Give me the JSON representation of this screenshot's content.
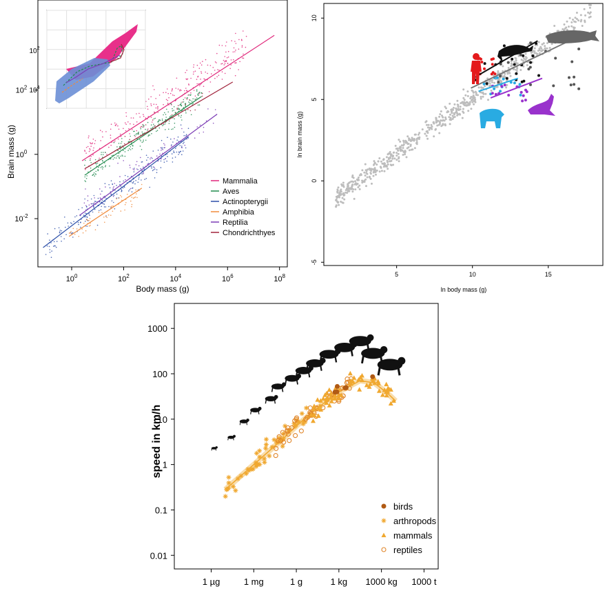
{
  "chart_data": [
    {
      "id": "brain_body_classes",
      "type": "scatter",
      "xscale": "log10",
      "yscale": "log10",
      "xlabel": "Body mass (g)",
      "ylabel": "Brain mass (g)",
      "x_ticks": [
        {
          "exp": 0
        },
        {
          "exp": 2
        },
        {
          "exp": 4
        },
        {
          "exp": 6
        },
        {
          "exp": 8
        }
      ],
      "y_ticks": [
        {
          "exp": -2
        },
        {
          "exp": 0
        },
        {
          "exp": 2
        }
      ],
      "xlim_log": [
        -1.3,
        8.3
      ],
      "ylim_log": [
        -3.5,
        4.8
      ],
      "legend": [
        {
          "label": "Mammalia",
          "color": "#e0267a"
        },
        {
          "label": "Aves",
          "color": "#1f8a4c"
        },
        {
          "label": "Actinopterygii",
          "color": "#2b4ea8"
        },
        {
          "label": "Amphibia",
          "color": "#f08a3a"
        },
        {
          "label": "Reptilia",
          "color": "#7b3bb5"
        },
        {
          "label": "Chondrichthyes",
          "color": "#a0223a"
        }
      ],
      "series": [
        {
          "name": "Mammalia",
          "color": "#e0267a",
          "fit": [
            [
              0.4,
              -0.2
            ],
            [
              7.8,
              3.7
            ]
          ],
          "cloud": {
            "x": [
              0.5,
              6.8
            ],
            "slope": 0.52,
            "intercept": -0.2,
            "spread": 0.5,
            "n": 260
          }
        },
        {
          "name": "Aves",
          "color": "#1f8a4c",
          "fit": [
            [
              0.5,
              -0.65
            ],
            [
              5.0,
              1.8
            ]
          ],
          "cloud": {
            "x": [
              0.5,
              5.0
            ],
            "slope": 0.55,
            "intercept": -0.9,
            "spread": 0.35,
            "n": 260
          }
        },
        {
          "name": "Actinopterygii",
          "color": "#2b4ea8",
          "fit": [
            [
              -1.1,
              -2.9
            ],
            [
              4.5,
              0.55
            ]
          ],
          "cloud": {
            "x": [
              -1.0,
              4.5
            ],
            "slope": 0.6,
            "intercept": -2.2,
            "spread": 0.45,
            "n": 260
          }
        },
        {
          "name": "Amphibia",
          "color": "#f08a3a",
          "fit": [
            [
              -0.1,
              -2.55
            ],
            [
              2.7,
              -1.05
            ]
          ],
          "cloud": {
            "x": [
              -0.1,
              2.7
            ],
            "slope": 0.52,
            "intercept": -2.5,
            "spread": 0.3,
            "n": 60
          }
        },
        {
          "name": "Reptilia",
          "color": "#7b3bb5",
          "fit": [
            [
              0.3,
              -1.9
            ],
            [
              5.6,
              1.25
            ]
          ],
          "cloud": {
            "x": [
              0.4,
              5.6
            ],
            "slope": 0.55,
            "intercept": -1.9,
            "spread": 0.4,
            "n": 80
          }
        },
        {
          "name": "Chondrichthyes",
          "color": "#a0223a",
          "fit": [
            [
              0.5,
              -0.45
            ],
            [
              6.2,
              2.25
            ]
          ],
          "cloud": {
            "x": [
              2.0,
              5.5
            ],
            "slope": 0.5,
            "intercept": -0.6,
            "spread": 0.35,
            "n": 25
          }
        }
      ],
      "inset": {
        "y_ticks": [
          {
            "exp": 2
          },
          {
            "exp": 4
          }
        ]
      }
    },
    {
      "id": "ln_brain_body",
      "type": "scatter",
      "xlabel": "ln body mass (g)",
      "ylabel": "ln brain mass (g)",
      "xlim": [
        0.2,
        18.6
      ],
      "ylim": [
        -5.2,
        10.9
      ],
      "x_ticks": [
        5,
        10,
        15
      ],
      "y_ticks": [
        -5,
        0,
        5,
        10
      ],
      "gray_cloud": {
        "x": [
          1,
          17.8
        ],
        "slope": 0.68,
        "intercept": -1.7,
        "spread": 0.6,
        "n": 700,
        "color": "#bdbdbd"
      },
      "groups": [
        {
          "name": "primates",
          "color": "#e41a1c",
          "x": [
            10.2,
            11.6
          ],
          "y": [
            6.4,
            7.6
          ],
          "n": 14
        },
        {
          "name": "cetaceans",
          "color": "#111111",
          "x": [
            10.2,
            14.5
          ],
          "y": [
            5.9,
            8.5
          ],
          "n": 20
        },
        {
          "name": "large mammals",
          "color": "#555555",
          "x": [
            10.0,
            17.5
          ],
          "y": [
            5.6,
            8.9
          ],
          "n": 24
        },
        {
          "name": "carnivores",
          "color": "#29abe2",
          "x": [
            10.3,
            13.2
          ],
          "y": [
            5.2,
            6.4
          ],
          "n": 14
        },
        {
          "name": "pinnipeds",
          "color": "#9932cc",
          "x": [
            11.2,
            13.6
          ],
          "y": [
            4.9,
            5.9
          ],
          "n": 14
        }
      ],
      "fits": [
        {
          "color": "#111111",
          "from": [
            10.4,
            6.5
          ],
          "to": [
            14.3,
            8.6
          ]
        },
        {
          "color": "#777777",
          "from": [
            9.9,
            5.7
          ],
          "to": [
            17.5,
            9.1
          ]
        },
        {
          "color": "#29abe2",
          "from": [
            10.4,
            5.5
          ],
          "to": [
            13.0,
            6.3
          ]
        },
        {
          "color": "#9932cc",
          "from": [
            11.2,
            5.1
          ],
          "to": [
            14.6,
            6.3
          ]
        }
      ]
    },
    {
      "id": "speed_vs_mass",
      "type": "scatter",
      "xscale": "log10 grams",
      "yscale": "log10",
      "xlabel": "",
      "ylabel": "speed in km/h",
      "x_ticks": [
        {
          "label": "1 µg",
          "log": -6
        },
        {
          "label": "1 mg",
          "log": -3
        },
        {
          "label": "1 g",
          "log": 0
        },
        {
          "label": "1 kg",
          "log": 3
        },
        {
          "label": "1000 kg",
          "log": 6
        },
        {
          "label": "1000 t",
          "log": 9
        }
      ],
      "y_ticks": [
        {
          "label": "1000",
          "log": 3
        },
        {
          "label": "100",
          "log": 2
        },
        {
          "label": "10",
          "log": 1
        },
        {
          "label": "1",
          "log": 0
        },
        {
          "label": "0.1",
          "log": -1
        },
        {
          "label": "0.01",
          "log": -2
        }
      ],
      "xlim_log": [
        -8.6,
        10.0
      ],
      "ylim_log": [
        -2.3,
        3.55
      ],
      "legend": [
        {
          "label": "birds",
          "marker": "dot",
          "color": "#b05a14"
        },
        {
          "label": "arthropods",
          "marker": "star",
          "color": "#f0a830"
        },
        {
          "label": "mammals",
          "marker": "triangle",
          "color": "#f0a830"
        },
        {
          "label": "reptiles",
          "marker": "circle",
          "color": "#e0862a"
        }
      ],
      "fit_curve": [
        [
          -5.0,
          -0.55
        ],
        [
          -3.0,
          0.0
        ],
        [
          -1.0,
          0.55
        ],
        [
          0.0,
          0.85
        ],
        [
          1.5,
          1.25
        ],
        [
          3.0,
          1.6
        ],
        [
          4.5,
          1.85
        ],
        [
          5.5,
          1.8
        ],
        [
          6.5,
          1.55
        ],
        [
          7.0,
          1.4
        ]
      ],
      "groups": [
        {
          "name": "arthropods",
          "marker": "star",
          "color": "#f0a830",
          "x": [
            -5.0,
            1.0
          ],
          "n": 55
        },
        {
          "name": "reptiles",
          "marker": "circle",
          "color": "#e0862a",
          "x": [
            -1.5,
            4.0
          ],
          "n": 55
        },
        {
          "name": "mammals",
          "marker": "triangle",
          "color": "#f0a830",
          "x": [
            1.0,
            7.0
          ],
          "n": 70
        },
        {
          "name": "birds",
          "marker": "dot",
          "color": "#b05a14",
          "x": [
            2.5,
            5.5
          ],
          "n": 6
        }
      ],
      "silhouettes": [
        {
          "name": "mite",
          "log_mass": -5.8,
          "log_speed": 0.36
        },
        {
          "name": "ant",
          "log_mass": -4.6,
          "log_speed": 0.6
        },
        {
          "name": "beetle",
          "log_mass": -3.7,
          "log_speed": 0.95
        },
        {
          "name": "cockroach",
          "log_mass": -2.9,
          "log_speed": 1.2
        },
        {
          "name": "spider",
          "log_mass": -1.8,
          "log_speed": 1.45
        },
        {
          "name": "lizard",
          "log_mass": -1.3,
          "log_speed": 1.72
        },
        {
          "name": "mouse",
          "log_mass": -0.3,
          "log_speed": 1.9
        },
        {
          "name": "squirrel",
          "log_mass": 0.5,
          "log_speed": 2.07
        },
        {
          "name": "rabbit",
          "log_mass": 1.3,
          "log_speed": 2.23
        },
        {
          "name": "fox",
          "log_mass": 2.3,
          "log_speed": 2.43
        },
        {
          "name": "antelope",
          "log_mass": 3.4,
          "log_speed": 2.58
        },
        {
          "name": "cheetah",
          "log_mass": 4.5,
          "log_speed": 2.72
        },
        {
          "name": "deer",
          "log_mass": 5.4,
          "log_speed": 2.45
        },
        {
          "name": "elephant",
          "log_mass": 6.6,
          "log_speed": 2.2
        }
      ]
    }
  ]
}
